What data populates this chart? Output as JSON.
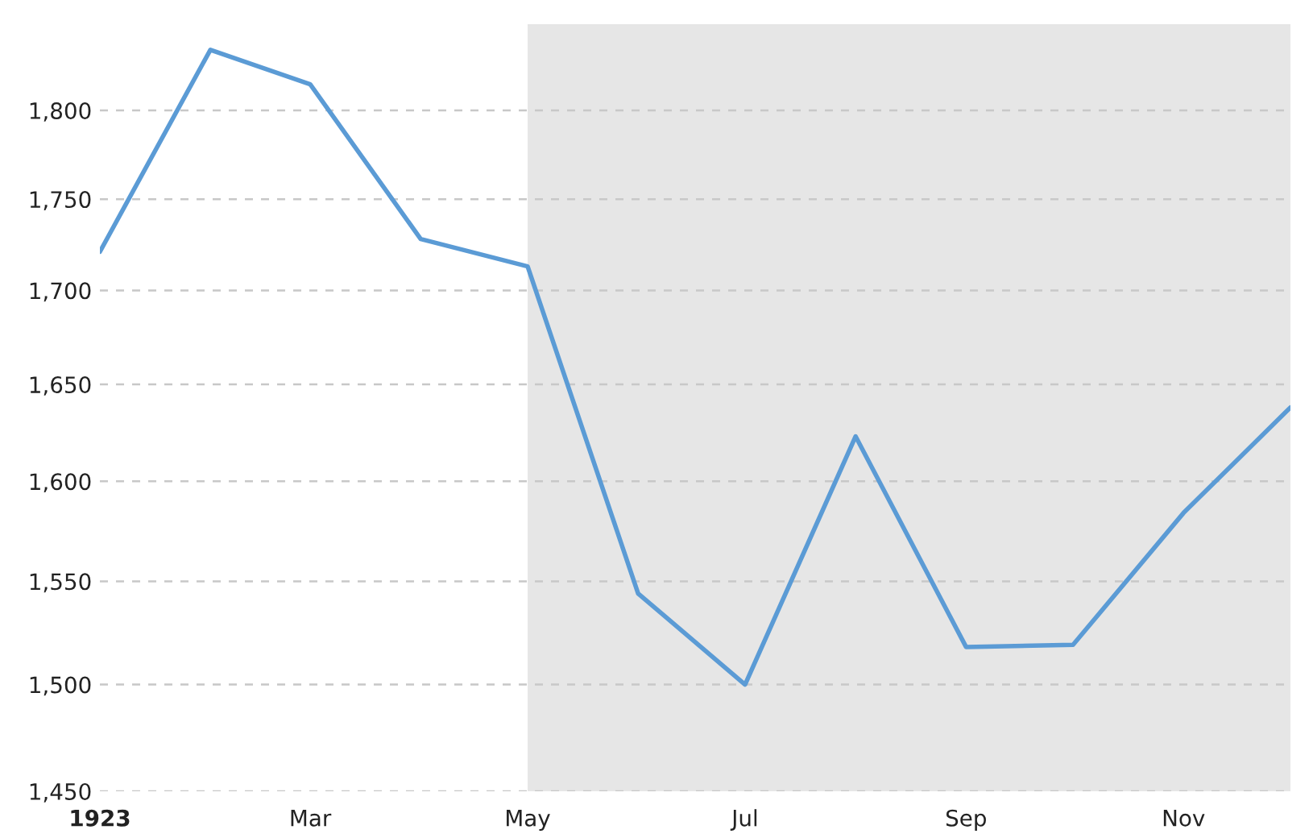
{
  "chart_data": {
    "type": "line",
    "x": [
      "1923-01-01",
      "1923-02-01",
      "1923-03-01",
      "1923-04-01",
      "1923-05-01",
      "1923-06-01",
      "1923-07-01",
      "1923-08-01",
      "1923-09-01",
      "1923-10-01",
      "1923-11-01",
      "1923-12-01"
    ],
    "series": [
      {
        "color": "#5b9bd5",
        "values": [
          1721,
          1835,
          1815,
          1728,
          1713,
          1544,
          1500,
          1623,
          1518,
          1519,
          1584,
          1638
        ]
      }
    ],
    "xlim": [
      "1923-01-01",
      "1923-12-01"
    ],
    "xticks": [
      {
        "value": "1923-01-01",
        "label": "1923"
      },
      {
        "value": "1923-03-01",
        "label": "Mar"
      },
      {
        "value": "1923-05-01",
        "label": "May"
      },
      {
        "value": "1923-07-01",
        "label": "Jul"
      },
      {
        "value": "1923-09-01",
        "label": "Sep"
      },
      {
        "value": "1923-11-01",
        "label": "Nov"
      }
    ],
    "log": "y",
    "ylim": [
      1450,
      1850
    ],
    "yticks": [
      {
        "value": 1450,
        "label": "1,450"
      },
      {
        "value": 1500,
        "label": "1,500"
      },
      {
        "value": 1550,
        "label": "1,550"
      },
      {
        "value": 1600,
        "label": "1,600"
      },
      {
        "value": 1650,
        "label": "1,650"
      },
      {
        "value": 1700,
        "label": "1,700"
      },
      {
        "value": 1750,
        "label": "1,750"
      },
      {
        "value": 1800,
        "label": "1,800"
      }
    ],
    "bands": [
      {
        "axis": "x",
        "from": "1923-05-01",
        "to": "1923-12-01",
        "color": "#e6e6e6"
      }
    ],
    "grid": "y",
    "marker": "none",
    "line_style": "solid"
  }
}
